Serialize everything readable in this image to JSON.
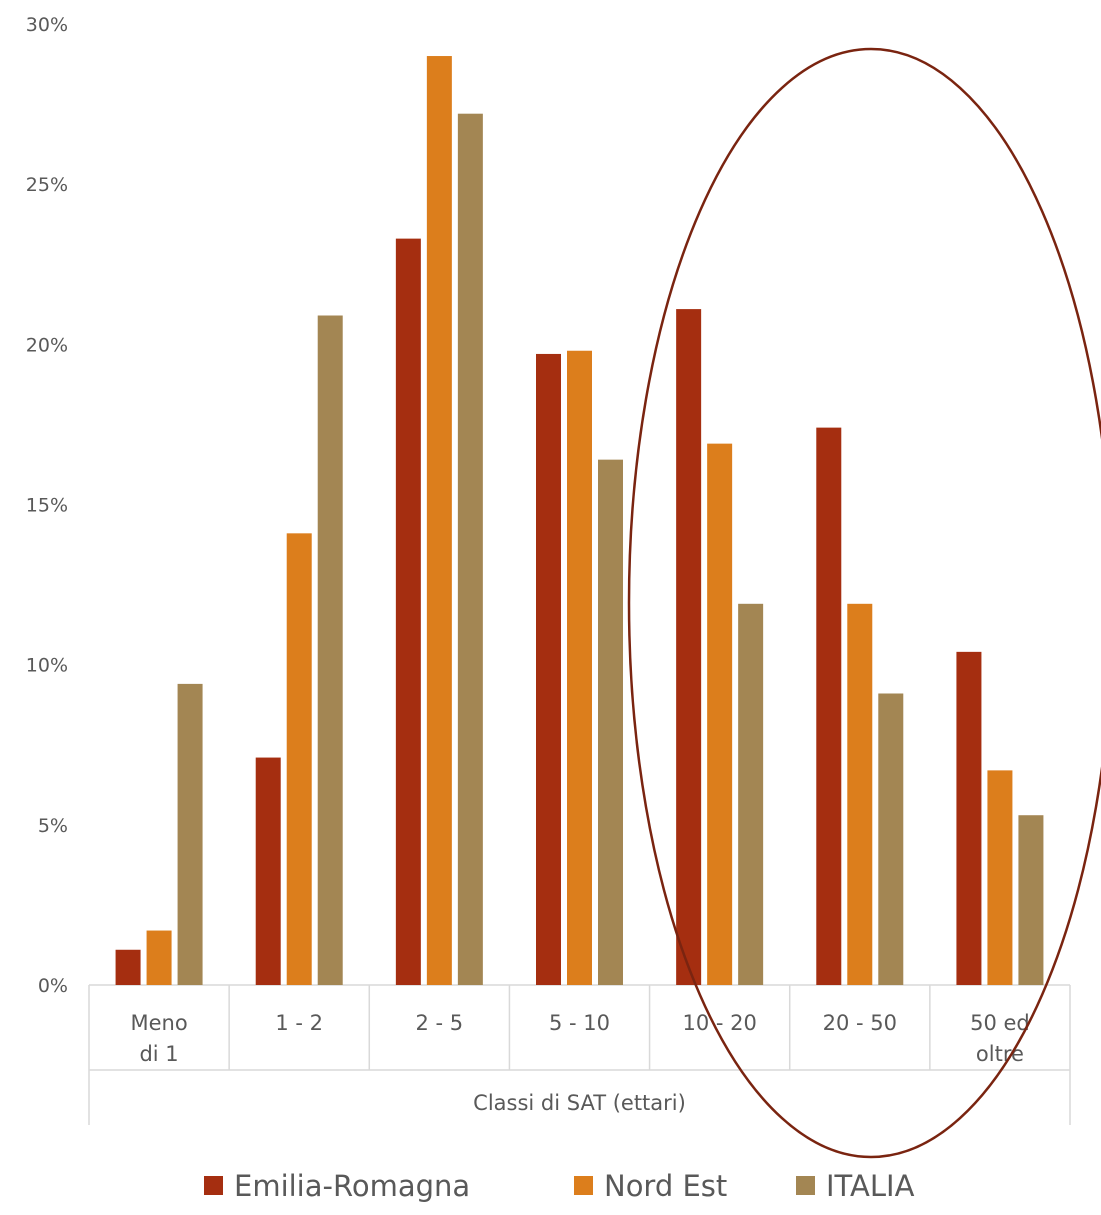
{
  "chart_data": {
    "type": "bar",
    "xlabel": "Classi di SAT (ettari)",
    "ylabel": "",
    "ylim": [
      0,
      30
    ],
    "y_ticks": [
      "0%",
      "5%",
      "10%",
      "15%",
      "20%",
      "25%",
      "30%"
    ],
    "y_tick_values": [
      0,
      5,
      10,
      15,
      20,
      25,
      30
    ],
    "categories": [
      "Meno di 1",
      "1 - 2",
      "2 - 5",
      "5 - 10",
      "10 - 20",
      "20 - 50",
      "50 ed oltre"
    ],
    "category_lines": [
      [
        "Meno",
        "di 1"
      ],
      [
        "1 - 2"
      ],
      [
        "2 - 5"
      ],
      [
        "5 - 10"
      ],
      [
        "10 - 20"
      ],
      [
        "20 - 50"
      ],
      [
        "50 ed",
        "oltre"
      ]
    ],
    "series": [
      {
        "name": "Emilia-Romagna",
        "color": "#A52E10",
        "values": [
          1.1,
          7.1,
          23.3,
          19.7,
          21.1,
          17.4,
          10.4
        ]
      },
      {
        "name": "Nord Est",
        "color": "#DC7E1C",
        "values": [
          1.7,
          14.1,
          29.0,
          19.8,
          16.9,
          11.9,
          6.7
        ]
      },
      {
        "name": "ITALIA",
        "color": "#A38653",
        "values": [
          9.4,
          20.9,
          27.2,
          16.4,
          11.9,
          9.1,
          5.3
        ]
      }
    ],
    "grid": false,
    "legend_position": "bottom",
    "annotation": {
      "shape": "ellipse",
      "color": "#7A2410",
      "encloses": [
        "10 - 20",
        "20 - 50",
        "50 ed oltre"
      ]
    }
  }
}
